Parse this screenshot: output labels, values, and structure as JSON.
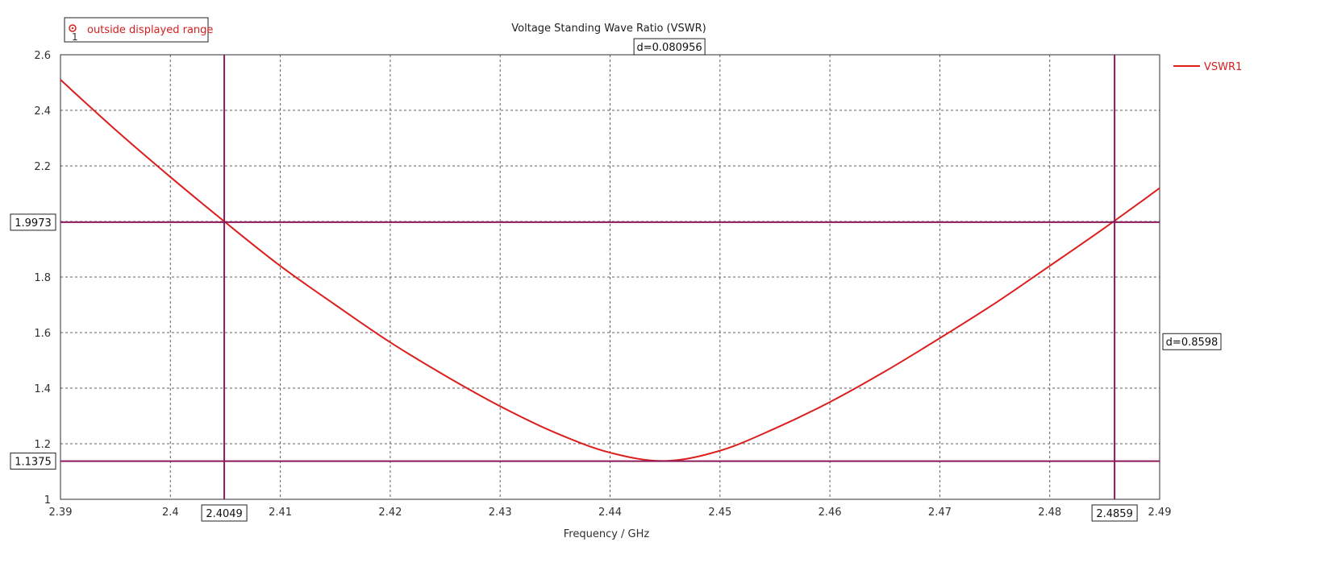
{
  "chart_data": {
    "type": "line",
    "title": "Voltage Standing Wave Ratio (VSWR)",
    "xlabel": "Frequency / GHz",
    "ylabel": "",
    "xlim": [
      2.39,
      2.49
    ],
    "ylim": [
      1,
      2.6
    ],
    "xticks": [
      "2.39",
      "2.4",
      "2.41",
      "2.42",
      "2.43",
      "2.44",
      "2.45",
      "2.46",
      "2.47",
      "2.48",
      "2.49"
    ],
    "yticks": [
      "1",
      "1.2",
      "1.4",
      "1.6",
      "1.8",
      "2",
      "2.2",
      "2.4",
      "2.6"
    ],
    "grid": true,
    "legend_position": "top-right",
    "series": [
      {
        "name": "VSWR1",
        "color": "#dc1e1e",
        "x": [
          2.39,
          2.395,
          2.4,
          2.405,
          2.41,
          2.415,
          2.42,
          2.425,
          2.43,
          2.435,
          2.44,
          2.445,
          2.45,
          2.455,
          2.46,
          2.465,
          2.47,
          2.475,
          2.48,
          2.485,
          2.49
        ],
        "y": [
          2.51,
          2.33,
          2.16,
          1.997,
          1.84,
          1.7,
          1.565,
          1.445,
          1.335,
          1.24,
          1.168,
          1.138,
          1.175,
          1.255,
          1.35,
          1.46,
          1.58,
          1.705,
          1.84,
          1.977,
          2.12
        ]
      }
    ],
    "markers": {
      "color": "#8b1a5a",
      "vertical": [
        {
          "value": 2.4049,
          "label": "2.4049"
        },
        {
          "value": 2.4859,
          "label": "2.4859"
        }
      ],
      "horizontal": [
        {
          "value": 1.9973,
          "label": "1.9973"
        },
        {
          "value": 1.1375,
          "label": "1.1375"
        }
      ],
      "delta_x_label": "d=0.080956",
      "delta_y_label": "d=0.8598"
    },
    "annotation": {
      "text": "outside displayed range",
      "sub": "1"
    }
  }
}
